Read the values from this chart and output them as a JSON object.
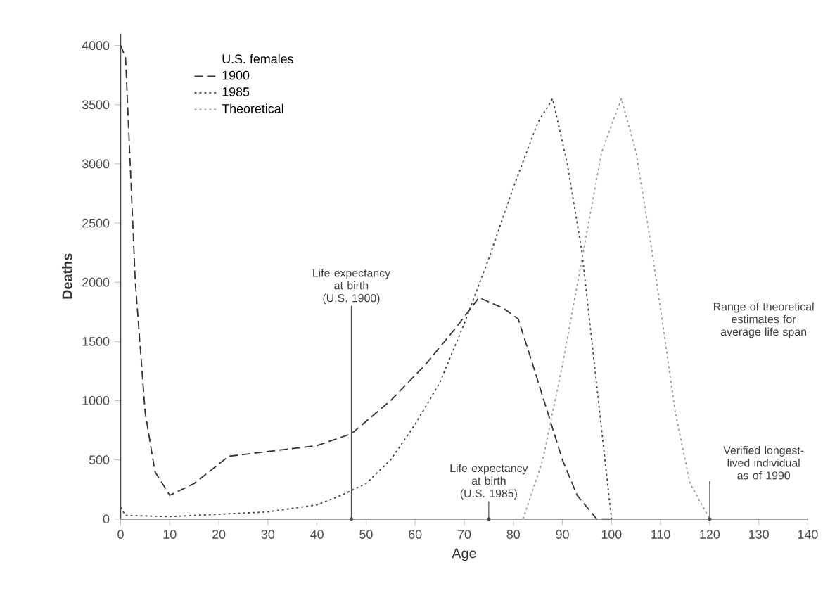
{
  "chart_data": {
    "type": "line",
    "xlabel": "Age",
    "ylabel": "Deaths",
    "legend_title": "U.S. females",
    "x": [
      0,
      1,
      3,
      5,
      7,
      10,
      15,
      22,
      30,
      40,
      47,
      55,
      62,
      68,
      73,
      78,
      81,
      84,
      87,
      90,
      93,
      97,
      100
    ],
    "series": [
      {
        "name": "1900",
        "color": "#333333",
        "line_style": "dashed",
        "values": [
          4000,
          3900,
          2000,
          900,
          400,
          200,
          300,
          530,
          570,
          620,
          720,
          1000,
          1300,
          1600,
          1870,
          1780,
          1690,
          1300,
          900,
          500,
          200,
          0,
          0
        ]
      },
      {
        "name": "1985",
        "color": "#444444",
        "line_style": "dotted",
        "x": [
          0,
          1,
          10,
          20,
          30,
          40,
          45,
          50,
          55,
          60,
          65,
          70,
          75,
          80,
          85,
          88,
          91,
          94,
          96,
          98,
          100
        ],
        "values": [
          100,
          30,
          20,
          40,
          60,
          120,
          200,
          300,
          500,
          800,
          1150,
          1650,
          2200,
          2800,
          3350,
          3550,
          3000,
          2250,
          1500,
          750,
          0
        ]
      },
      {
        "name": "Theoretical",
        "color": "#999999",
        "line_style": "dotted",
        "x": [
          82,
          86,
          90,
          94,
          98,
          102,
          105,
          108,
          110,
          113,
          116,
          120
        ],
        "values": [
          0,
          500,
          1300,
          2200,
          3100,
          3550,
          3100,
          2330,
          1775,
          900,
          300,
          0
        ]
      }
    ],
    "xlim": [
      0,
      140
    ],
    "xticks": [
      0,
      10,
      20,
      30,
      40,
      50,
      60,
      70,
      80,
      90,
      100,
      110,
      120,
      130,
      140
    ],
    "ylim": [
      0,
      4100
    ],
    "yticks": [
      0,
      500,
      1000,
      1500,
      2000,
      2500,
      3000,
      3500,
      4000
    ],
    "legend": "top left",
    "annotations": [
      {
        "text": "Life expectancy at birth (U.S. 1900)",
        "x": 47,
        "y": 0
      },
      {
        "text": "Life expectancy at birth (U.S. 1985)",
        "x": 75,
        "y": 0
      },
      "Range of theoretical estimates for average life span",
      {
        "text": "Verified longest-lived individual as of 1990",
        "x": 120,
        "y": 0
      }
    ]
  }
}
